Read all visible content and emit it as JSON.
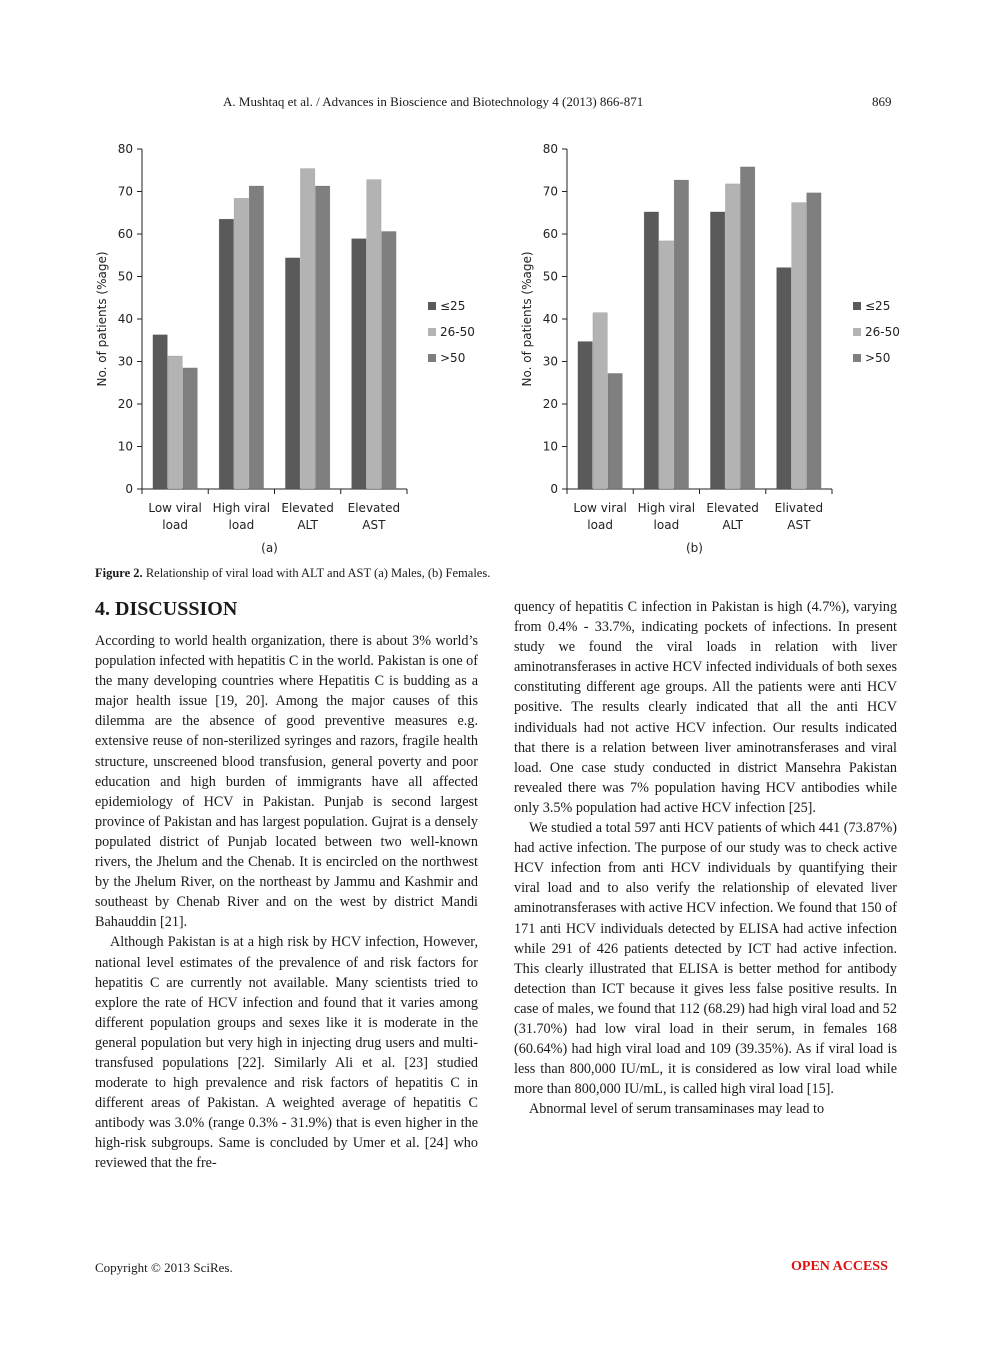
{
  "running_head": {
    "title": "A. Mushtaq et al. / Advances in Bioscience and Biotechnology 4 (2013) 866-871",
    "page_number": "869"
  },
  "chart_data": [
    {
      "type": "bar",
      "panel_label": "(a)",
      "title": "",
      "xlabel": "",
      "ylabel": "No. of patients (%age)",
      "ylim": [
        0,
        80
      ],
      "yticks": [
        0,
        10,
        20,
        30,
        40,
        50,
        60,
        70,
        80
      ],
      "grid": false,
      "legend_position": "right",
      "categories": [
        "Low viral load",
        "High viral load",
        "Elevated ALT",
        "Elevated AST"
      ],
      "category_lines": [
        [
          "Low viral",
          "load"
        ],
        [
          "High viral",
          "load"
        ],
        [
          "Elevated",
          "ALT"
        ],
        [
          "Elevated",
          "AST"
        ]
      ],
      "series": [
        {
          "name": "≤25",
          "color": "#5a5a5a",
          "values": [
            36.3,
            63.5,
            54.4,
            58.9
          ]
        },
        {
          "name": "26-50",
          "color": "#b3b3b3",
          "values": [
            31.3,
            68.4,
            75.4,
            72.8
          ]
        },
        {
          "name": ">50",
          "color": "#7f7f7f",
          "values": [
            28.5,
            71.3,
            71.3,
            60.6
          ]
        }
      ]
    },
    {
      "type": "bar",
      "panel_label": "(b)",
      "title": "",
      "xlabel": "",
      "ylabel": "No. of patients (%age)",
      "ylim": [
        0,
        80
      ],
      "yticks": [
        0,
        10,
        20,
        30,
        40,
        50,
        60,
        70,
        80
      ],
      "grid": false,
      "legend_position": "right",
      "categories": [
        "Low viral load",
        "High viral load",
        "Elevated ALT",
        "Elivated AST"
      ],
      "category_lines": [
        [
          "Low viral",
          "load"
        ],
        [
          "High viral",
          "load"
        ],
        [
          "Elevated",
          "ALT"
        ],
        [
          "Elivated",
          "AST"
        ]
      ],
      "series": [
        {
          "name": "≤25",
          "color": "#5a5a5a",
          "values": [
            34.7,
            65.2,
            65.2,
            52.1
          ]
        },
        {
          "name": "26-50",
          "color": "#b3b3b3",
          "values": [
            41.5,
            58.4,
            71.8,
            67.4
          ]
        },
        {
          "name": ">50",
          "color": "#7f7f7f",
          "values": [
            27.2,
            72.7,
            75.8,
            69.7
          ]
        }
      ]
    }
  ],
  "figure_caption": {
    "label": "Figure 2.",
    "text": " Relationship of viral load with ALT and AST (a) Males, (b) Females."
  },
  "section": {
    "heading": "4. DISCUSSION"
  },
  "left_column": [
    "According to world health organization, there is about 3% world’s population infected with hepatitis C in the world. Pakistan is one of the many developing countries where Hepatitis C is budding as a major health issue [19, 20]. Among the major causes of this dilemma are the absence of good preventive measures e.g. extensive reuse of non-sterilized syringes and razors, fragile health structure, unscreened blood transfusion, general poverty and poor education and high burden of immigrants have all affected epidemiology of HCV in Pakistan. Punjab is second largest province of Pakistan and has largest population. Gujrat is a densely populated district of Punjab located between two well-known rivers, the Jhelum and the Chenab. It is encircled on the northwest by the Jhelum River, on the northeast by Jammu and Kashmir and southeast by Chenab River and on the west by district Mandi Bahauddin [21].",
    "Although Pakistan is at a high risk by HCV infection, However, national level estimates of the prevalence of and risk factors for hepatitis C are currently not available. Many scientists tried to explore the rate of HCV infection and found that it varies among different population groups and sexes like it is moderate in the general population but very high in injecting drug users and multi-transfused populations [22]. Similarly Ali et al. [23] studied moderate to high prevalence and risk factors of hepatitis C in different areas of Pakistan. A weighted average of hepatitis C antibody was 3.0% (range 0.3% - 31.9%) that is even higher in the high-risk subgroups. Same is concluded by Umer et al. [24] who reviewed that the fre-"
  ],
  "right_column": [
    "quency of hepatitis C infection in Pakistan is high (4.7%), varying from 0.4% - 33.7%, indicating pockets of infections. In present study we found the viral loads in relation with liver aminotransferases in active HCV infected individuals of both sexes constituting different age groups. All the patients were anti HCV positive. The results clearly indicated that all the anti HCV individuals had not active HCV infection. Our results indicated that there is a relation between liver aminotransferases and viral load. One case study conducted in district Mansehra Pakistan revealed there was 7% population having HCV antibodies while only 3.5% population had active HCV infection [25].",
    "We studied a total 597 anti HCV patients of which 441 (73.87%) had active infection. The purpose of our study was to check active HCV infection from anti HCV individuals by quantifying their viral load and to also verify the relationship of elevated liver aminotransferases with active HCV infection. We found that 150 of 171 anti HCV individuals detected by ELISA had active infection while 291 of 426 patients detected by ICT had active infection. This clearly illustrated that ELISA is better method for antibody detection than ICT because it gives less false positive results. In case of males, we found that 112 (68.29) had high viral load and 52 (31.70%) had low viral load in their serum, in females 168 (60.64%) had high viral load and 109 (39.35%). As if viral load is less than 800,000 IU/mL, it is considered as low viral load while more than 800,000 IU/mL, is called high viral load [15].",
    "Abnormal level of serum transaminases may lead to"
  ],
  "footer": {
    "copyright": "Copyright © 2013 SciRes.",
    "open_access": "OPEN ACCESS"
  }
}
